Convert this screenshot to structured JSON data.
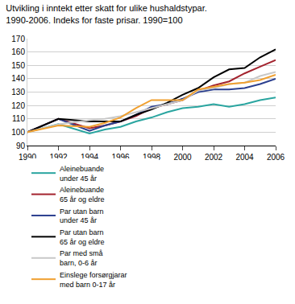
{
  "chart_data": {
    "type": "line",
    "title": "Utvikling i inntekt etter skatt for ulike hushaldstypar.\n1990-2006. Indeks for faste prisar. 1990=100",
    "x": [
      1990,
      1992,
      1994,
      1995,
      1996,
      1997,
      1998,
      1999,
      2000,
      2001,
      2002,
      2003,
      2004,
      2005,
      2006
    ],
    "series": [
      {
        "name": "Aleinebuande\nunder 45 år",
        "color": "#2aa5a0",
        "values": [
          100,
          106,
          99,
          102,
          104,
          108,
          111,
          115,
          118,
          119,
          121,
          119,
          121,
          124,
          126
        ]
      },
      {
        "name": "Aleinebuande\n65 år og eldre",
        "color": "#a3232e",
        "values": [
          100,
          110,
          103,
          105,
          108,
          112,
          118,
          121,
          124,
          131,
          135,
          138,
          144,
          149,
          154
        ]
      },
      {
        "name": "Par utan barn\nunder 45 år",
        "color": "#2b3f8f",
        "values": [
          100,
          110,
          101,
          105,
          108,
          113,
          119,
          121,
          125,
          130,
          132,
          132,
          133,
          136,
          140
        ]
      },
      {
        "name": "Par utan barn\n65 år og eldre",
        "color": "#000000",
        "values": [
          100,
          110,
          108,
          108,
          108,
          113,
          117,
          122,
          128,
          133,
          141,
          147,
          148,
          156,
          162
        ]
      },
      {
        "name": "Par med små\nbarn, 0-6 år",
        "color": "#c8c8c8",
        "values": [
          100,
          106,
          109,
          110,
          112,
          115,
          118,
          121,
          124,
          131,
          133,
          136,
          137,
          142,
          145
        ]
      },
      {
        "name": "Einslege forsørgjarar\nmed barn 0-17 år",
        "color": "#f0a030",
        "values": [
          100,
          105,
          104,
          107,
          111,
          118,
          124,
          124,
          124,
          132,
          134,
          136,
          137,
          139,
          143
        ]
      }
    ],
    "xlim": [
      1990,
      2006
    ],
    "xticks": [
      1990,
      1992,
      1994,
      1996,
      1998,
      2000,
      2002,
      2004,
      2006
    ],
    "ylim": [
      90,
      170
    ],
    "yticks": [
      90,
      100,
      110,
      120,
      130,
      140,
      150,
      160,
      170
    ],
    "grid": true,
    "legend": "bottom"
  }
}
